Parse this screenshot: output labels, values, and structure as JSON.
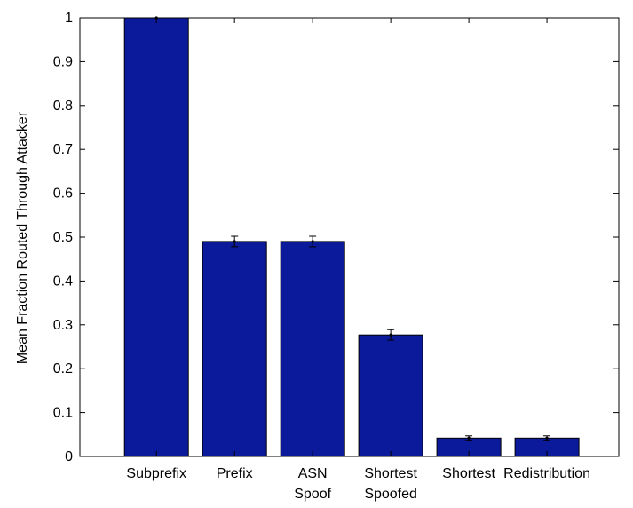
{
  "chart_data": {
    "type": "bar",
    "ylabel": "Mean Fraction Routed Through Attacker",
    "xlabel": "",
    "title": "",
    "categories": [
      [
        "Subprefix"
      ],
      [
        "Prefix"
      ],
      [
        "ASN",
        "Spoof"
      ],
      [
        "Shortest",
        "Spoofed"
      ],
      [
        "Shortest"
      ],
      [
        "Redistribution"
      ]
    ],
    "values": [
      1.0,
      0.49,
      0.49,
      0.277,
      0.042,
      0.042
    ],
    "error": [
      0.0,
      0.012,
      0.012,
      0.012,
      0.005,
      0.005
    ],
    "ylim": [
      0,
      1
    ],
    "yticks": [
      "0",
      "0.1",
      "0.2",
      "0.3",
      "0.4",
      "0.5",
      "0.6",
      "0.7",
      "0.8",
      "0.9",
      "1"
    ],
    "grid": false,
    "colors": {
      "bar": "#0a1a9a",
      "edge": "#000000",
      "error": "#000000"
    }
  }
}
